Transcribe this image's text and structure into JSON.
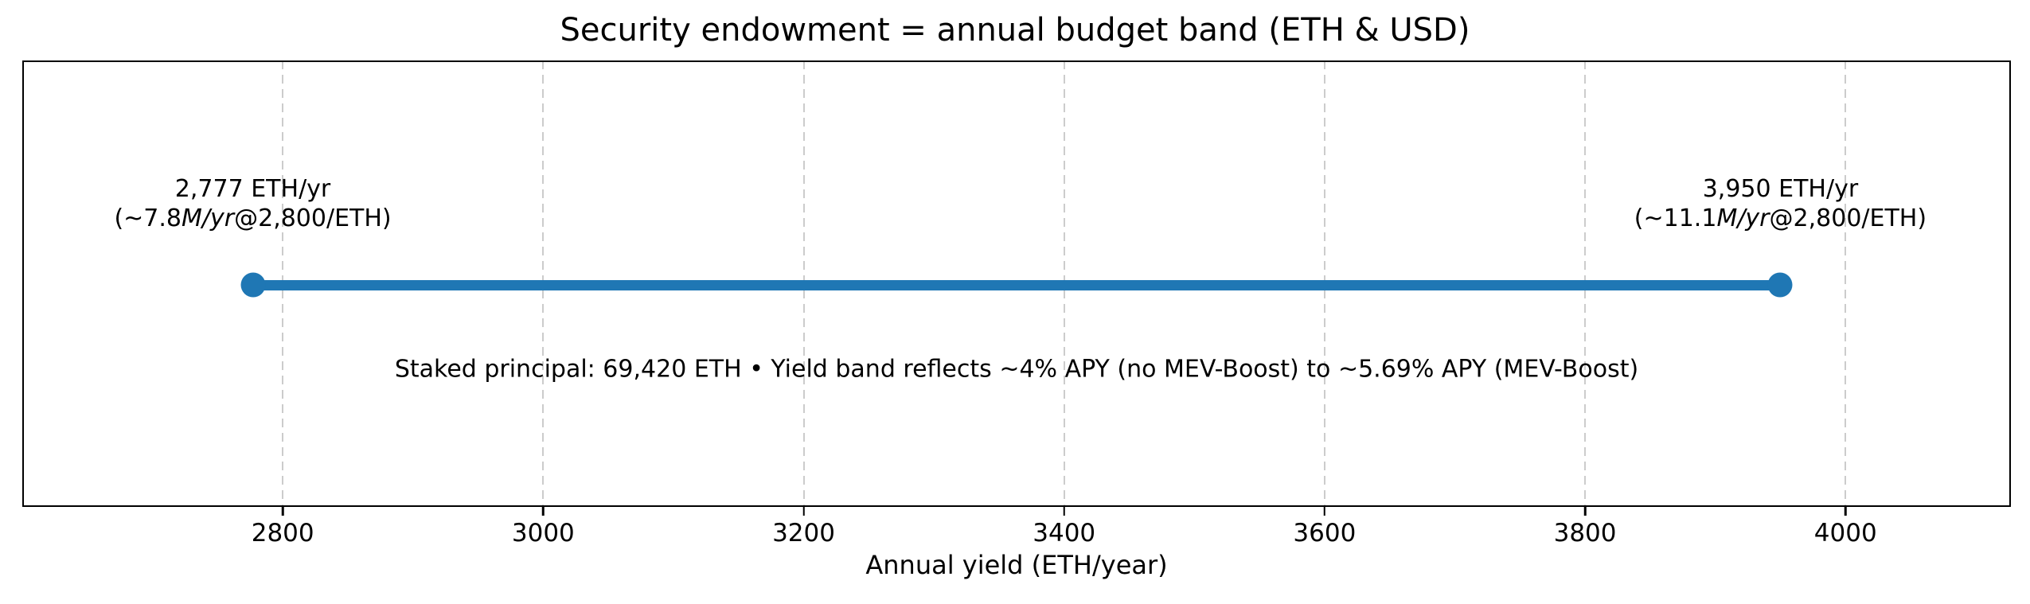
{
  "chart_data": {
    "type": "range_band",
    "title": "Security endowment = annual budget band (ETH & USD)",
    "xlabel": "Annual yield (ETH/year)",
    "xlim": [
      2600,
      4127
    ],
    "x_ticks": [
      2800,
      3000,
      3200,
      3400,
      3600,
      3800,
      4000
    ],
    "grid": {
      "axis": "x",
      "style": "dashed",
      "color": "#cccccc"
    },
    "band": {
      "start": 2777,
      "end": 3950,
      "units": "ETH/year",
      "y_fraction_from_top": 0.503,
      "color": "#1f77b4"
    },
    "point_labels": [
      {
        "x": 2777,
        "line1": "2,777 ETH/yr",
        "line2": {
          "pre": "(~7.8",
          "italic": "M/yr",
          "post": "@2,800/ETH)"
        }
      },
      {
        "x": 3950,
        "line1": "3,950 ETH/yr",
        "line2": {
          "pre": "(~11.1",
          "italic": "M/yr",
          "post": "@2,800/ETH)"
        }
      }
    ],
    "annotation": {
      "text": "Staked principal: 69,420 ETH • Yield band reflects ~4% APY (no MEV-Boost) to ~5.69% APY (MEV-Boost)",
      "x_fraction": 0.5,
      "y_fraction_from_top": 0.692
    },
    "legend_position": "none",
    "colors": {
      "band": "#1f77b4",
      "grid": "#cccccc",
      "spine": "#000000",
      "text": "#000000",
      "background": "#ffffff"
    }
  }
}
